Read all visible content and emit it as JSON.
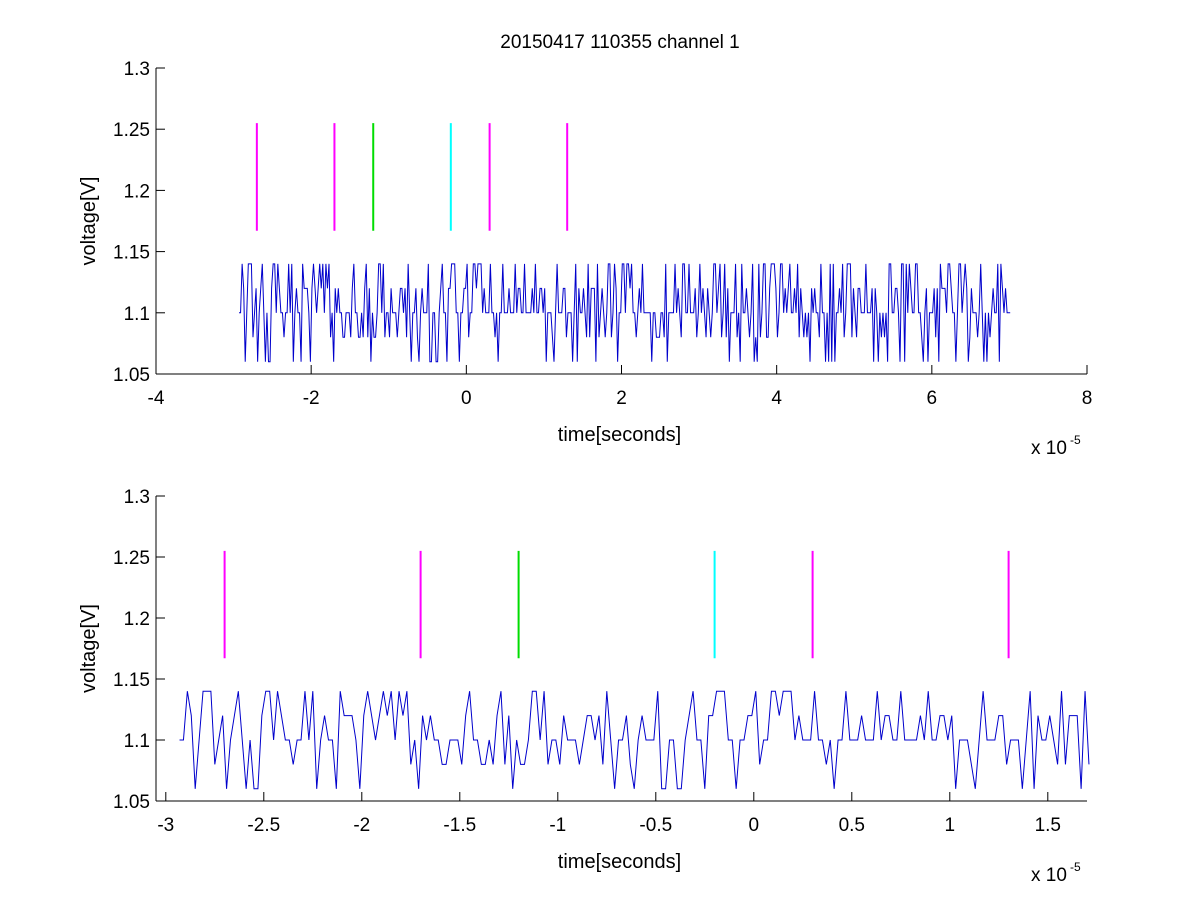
{
  "figure_title": "20150417 110355 channel 1",
  "chart_data": [
    {
      "type": "line",
      "title": "20150417 110355 channel 1",
      "xlabel": "time[seconds]",
      "ylabel": "voltage[V]",
      "x_exponent_label": "x 10",
      "x_exponent": "-5",
      "xlim": [
        -4,
        8
      ],
      "ylim": [
        1.05,
        1.3
      ],
      "x_ticks": [
        -4,
        -2,
        0,
        2,
        4,
        6,
        8
      ],
      "x_tick_labels": [
        "-4",
        "-2",
        "0",
        "2",
        "4",
        "6",
        "8"
      ],
      "y_ticks": [
        1.05,
        1.1,
        1.15,
        1.2,
        1.25,
        1.3
      ],
      "y_tick_labels": [
        "1.05",
        "1.1",
        "1.15",
        "1.2",
        "1.25",
        "1.3"
      ],
      "grid": false,
      "series": [
        {
          "color": "#0000cc",
          "signal": {
            "x_start": -2.93,
            "x_end": 7.0,
            "x_step": 0.02,
            "levels": [
              1.06,
              1.08,
              1.1,
              1.12,
              1.14
            ],
            "baseline": 1.1
          }
        }
      ],
      "markers": [
        {
          "x": -2.7,
          "y_from": 1.167,
          "y_to": 1.255,
          "color": "#ff00ff"
        },
        {
          "x": -1.7,
          "y_from": 1.167,
          "y_to": 1.255,
          "color": "#ff00ff"
        },
        {
          "x": -1.2,
          "y_from": 1.167,
          "y_to": 1.255,
          "color": "#00dd00"
        },
        {
          "x": -0.2,
          "y_from": 1.167,
          "y_to": 1.255,
          "color": "#00ffff"
        },
        {
          "x": 0.3,
          "y_from": 1.167,
          "y_to": 1.255,
          "color": "#ff00ff"
        },
        {
          "x": 1.3,
          "y_from": 1.167,
          "y_to": 1.255,
          "color": "#ff00ff"
        }
      ]
    },
    {
      "type": "line",
      "title": "",
      "xlabel": "time[seconds]",
      "ylabel": "voltage[V]",
      "x_exponent_label": "x 10",
      "x_exponent": "-5",
      "xlim": [
        -3.05,
        1.7
      ],
      "ylim": [
        1.05,
        1.3
      ],
      "x_ticks": [
        -3,
        -2.5,
        -2,
        -1.5,
        -1,
        -0.5,
        0,
        0.5,
        1,
        1.5
      ],
      "x_tick_labels": [
        "-3",
        "-2.5",
        "-2",
        "-1.5",
        "-1",
        "-0.5",
        "0",
        "0.5",
        "1",
        "1.5"
      ],
      "y_ticks": [
        1.05,
        1.1,
        1.15,
        1.2,
        1.25,
        1.3
      ],
      "y_tick_labels": [
        "1.05",
        "1.1",
        "1.15",
        "1.2",
        "1.25",
        "1.3"
      ],
      "grid": false,
      "series": [
        {
          "color": "#0000cc",
          "signal": {
            "x_start": -2.93,
            "x_end": 1.7,
            "x_step": 0.02,
            "levels": [
              1.06,
              1.08,
              1.1,
              1.12,
              1.14
            ],
            "baseline": 1.1
          }
        }
      ],
      "markers": [
        {
          "x": -2.7,
          "y_from": 1.167,
          "y_to": 1.255,
          "color": "#ff00ff"
        },
        {
          "x": -1.7,
          "y_from": 1.167,
          "y_to": 1.255,
          "color": "#ff00ff"
        },
        {
          "x": -1.2,
          "y_from": 1.167,
          "y_to": 1.255,
          "color": "#00dd00"
        },
        {
          "x": -0.2,
          "y_from": 1.167,
          "y_to": 1.255,
          "color": "#00ffff"
        },
        {
          "x": 0.3,
          "y_from": 1.167,
          "y_to": 1.255,
          "color": "#ff00ff"
        },
        {
          "x": 1.3,
          "y_from": 1.167,
          "y_to": 1.255,
          "color": "#ff00ff"
        }
      ]
    }
  ]
}
